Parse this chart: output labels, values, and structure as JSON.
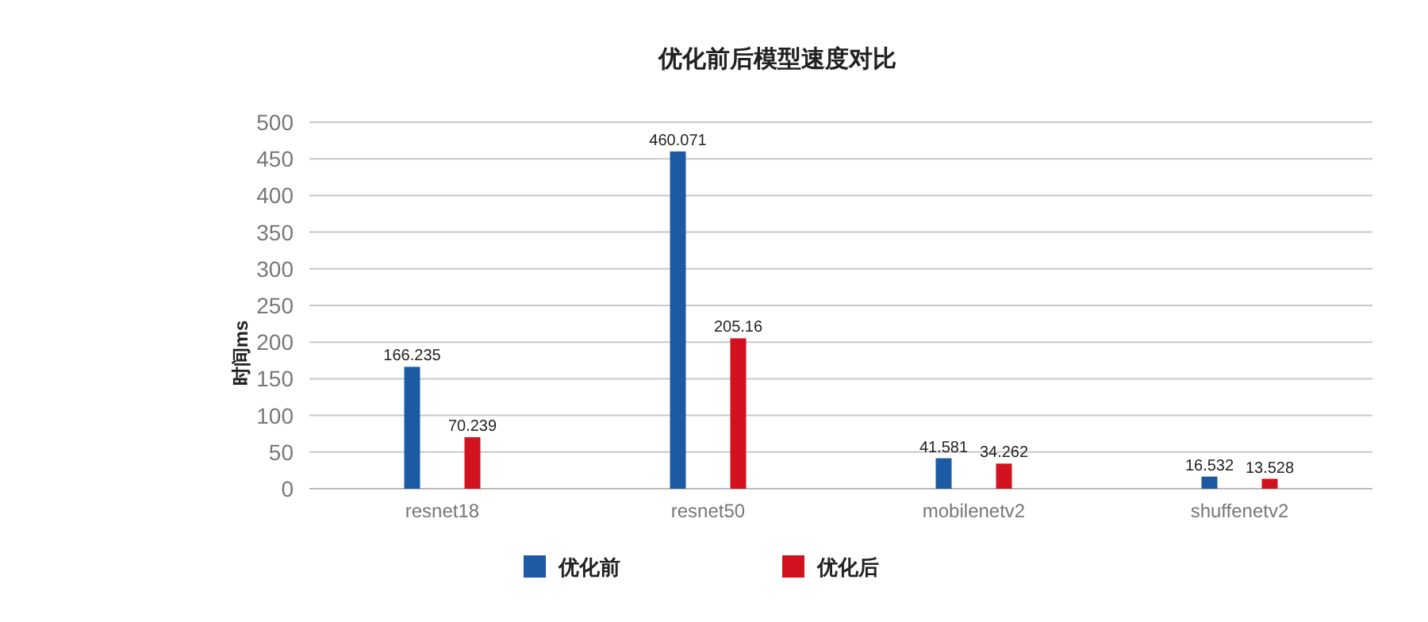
{
  "chart_data": {
    "type": "bar",
    "title": "优化前后模型速度对比",
    "ylabel": "时间ms",
    "categories": [
      "resnet18",
      "resnet50",
      "mobilenetv2",
      "shuffenetv2"
    ],
    "series": [
      {
        "name": "优化前",
        "color": "#1c5aa3",
        "values": [
          166.235,
          460.071,
          41.581,
          16.532
        ]
      },
      {
        "name": "优化后",
        "color": "#d2121f",
        "values": [
          70.239,
          205.16,
          34.262,
          13.528
        ]
      }
    ],
    "ylim": [
      0,
      500
    ],
    "yticks": [
      0,
      50,
      100,
      150,
      200,
      250,
      300,
      350,
      400,
      450,
      500
    ],
    "grid": "y",
    "legend": "bottom",
    "data_labels": true
  }
}
